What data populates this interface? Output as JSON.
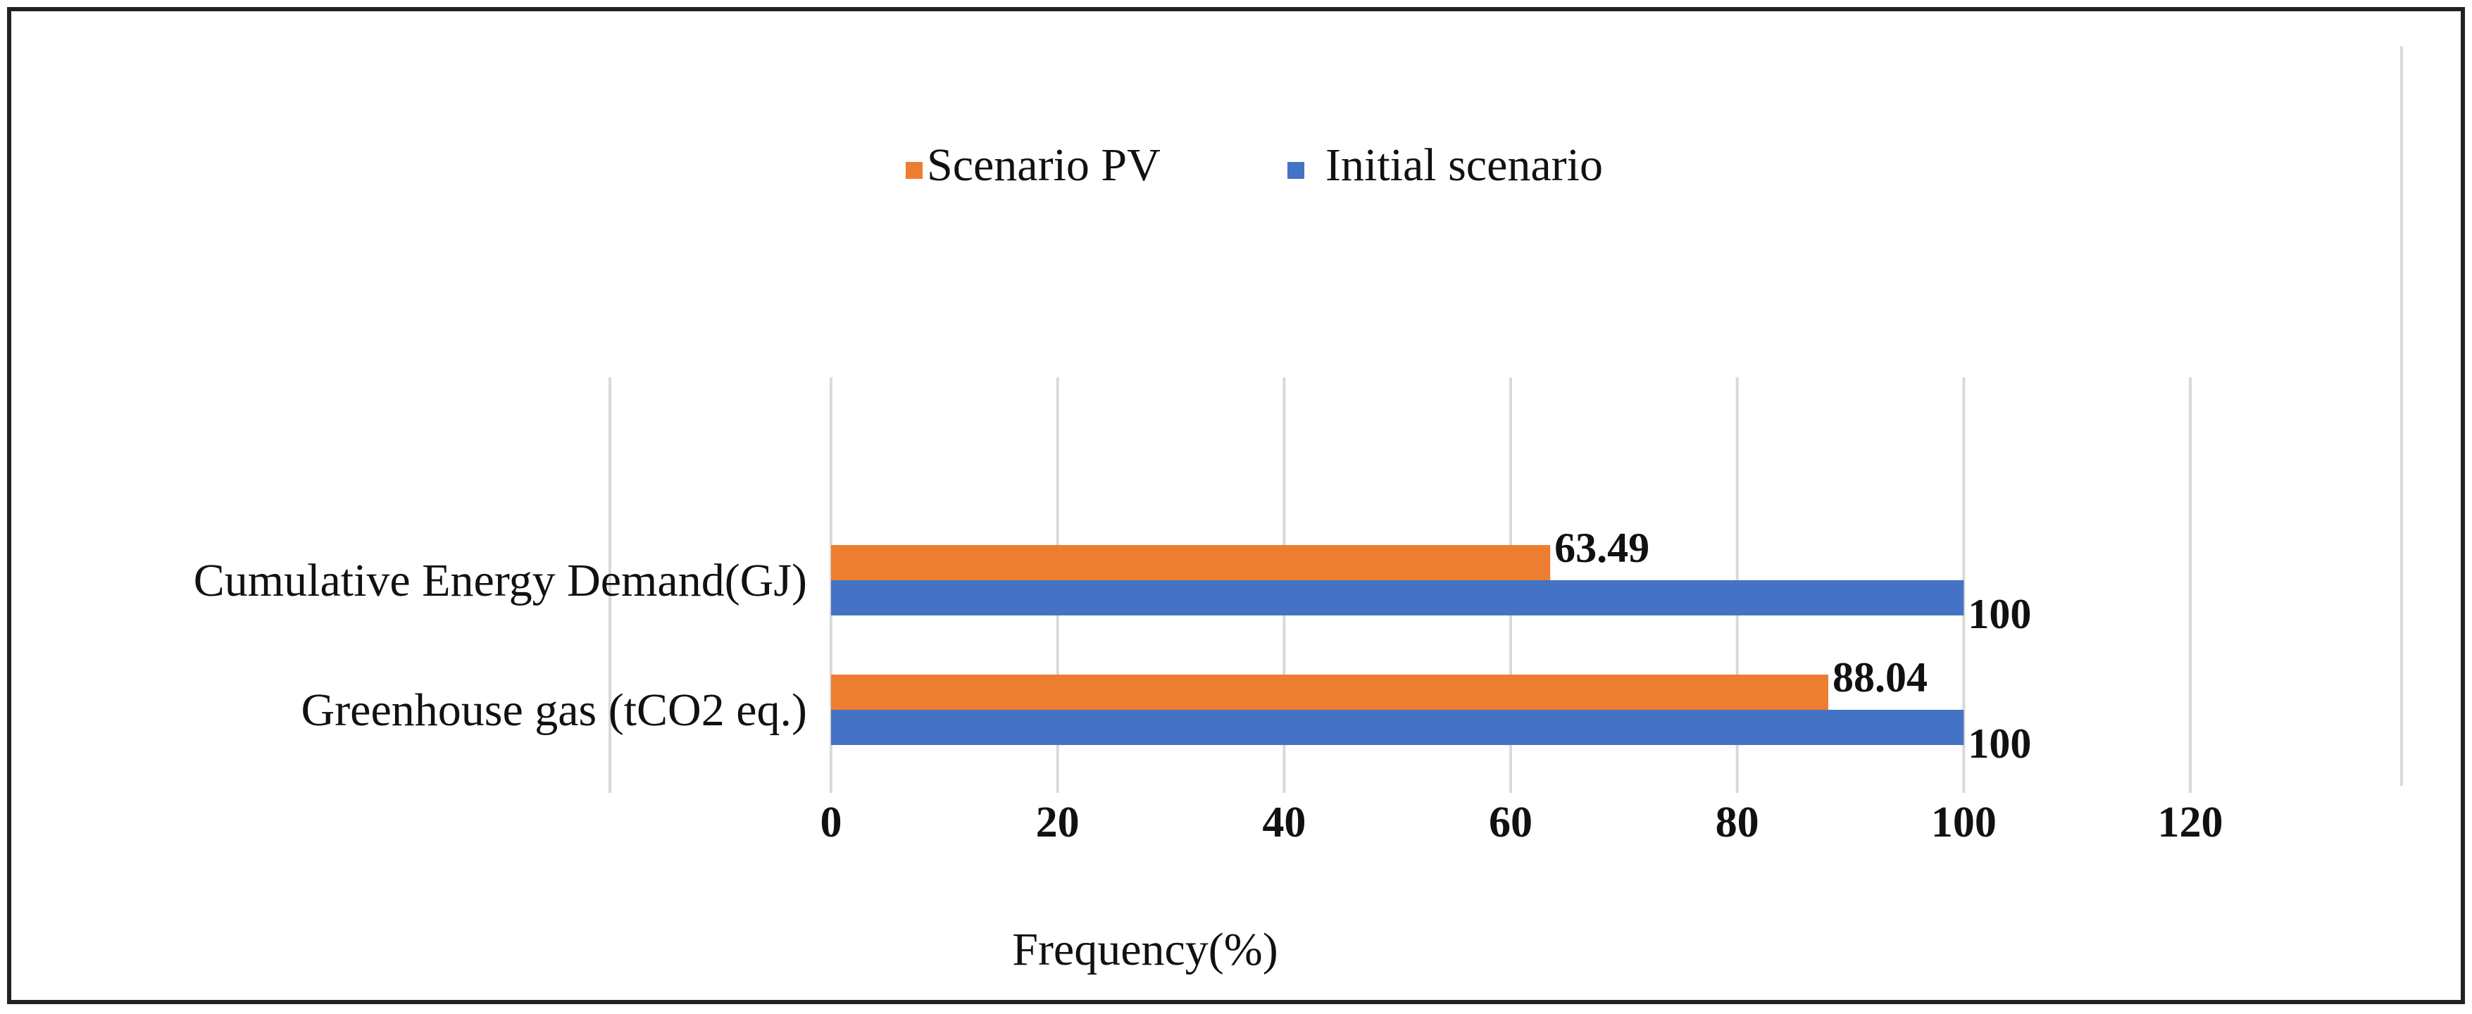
{
  "chart_data": {
    "type": "bar",
    "orientation": "horizontal",
    "title": "",
    "xlabel": "Frequency(%)",
    "ylabel": "",
    "xlim": [
      0,
      120
    ],
    "x_ticks": [
      0,
      20,
      40,
      60,
      80,
      100,
      120
    ],
    "grid": true,
    "legend_position": "top",
    "categories": [
      "Cumulative Energy Demand(GJ)",
      "Greenhouse gas (tCO2 eq.)"
    ],
    "series": [
      {
        "name": "Scenario PV",
        "color": "#ED7D31",
        "values": [
          63.49,
          88.04
        ],
        "labels": [
          "63.49",
          "88.04"
        ]
      },
      {
        "name": "Initial scenario",
        "color": "#4472C4",
        "values": [
          100,
          100
        ],
        "labels": [
          "100",
          "100"
        ]
      }
    ]
  }
}
